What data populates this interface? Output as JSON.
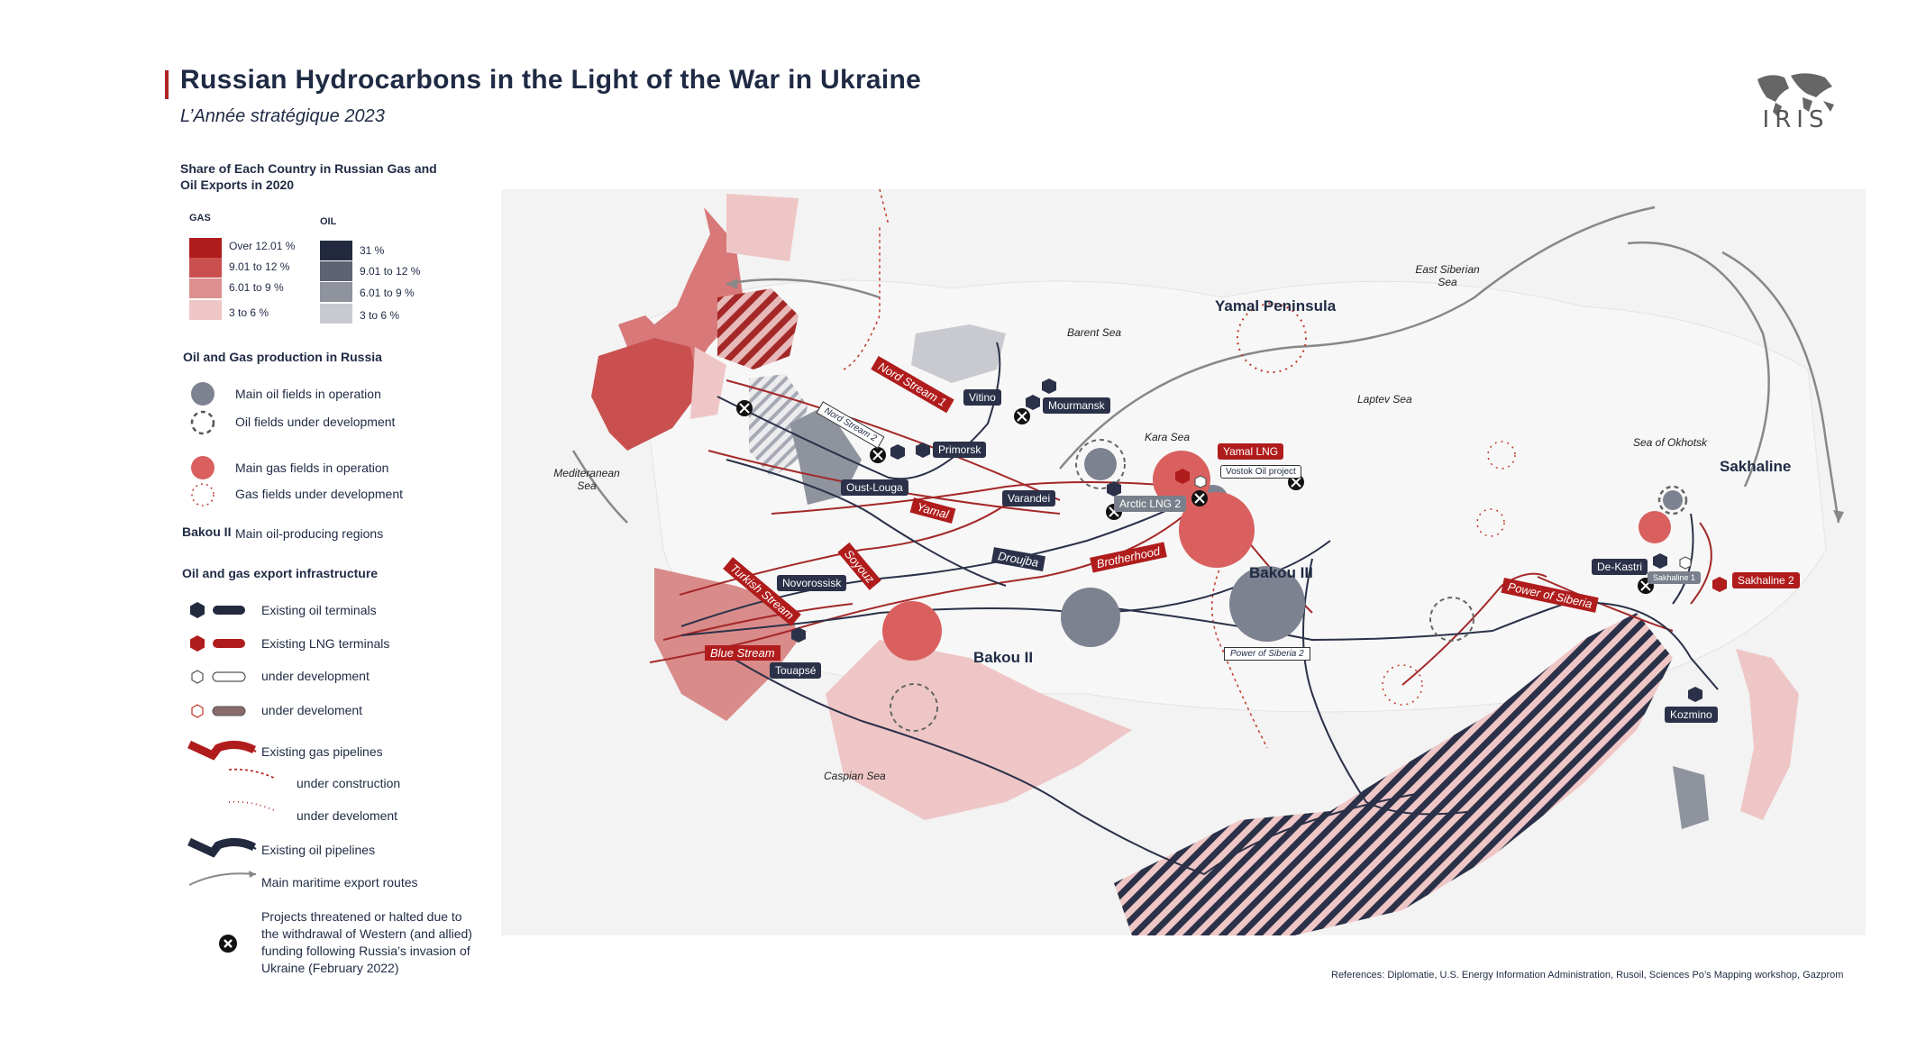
{
  "header": {
    "title": "Russian Hydrocarbons in the Light of the War in Ukraine",
    "subtitle": "L’Année stratégique 2023",
    "logo_text": "IRIS"
  },
  "legend": {
    "share_heading": "Share of Each Country in Russian Gas and Oil Exports in 2020",
    "gas_heading": "GAS",
    "oil_heading": "OIL",
    "gas_levels": [
      {
        "label": "Over 12.01 %",
        "color": "#b01c1c"
      },
      {
        "label": "9.01 to 12 %",
        "color": "#c9504f"
      },
      {
        "label": "6.01 to 9 %",
        "color": "#dc8f8e"
      },
      {
        "label": "3 to 6 %",
        "color": "#efc6c6"
      }
    ],
    "oil_levels": [
      {
        "label": "31 %",
        "color": "#232a40"
      },
      {
        "label": "9.01 to 12 %",
        "color": "#5d6373"
      },
      {
        "label": "6.01 to 9 %",
        "color": "#8e939e"
      },
      {
        "label": "3 to 6 %",
        "color": "#c8cad0"
      }
    ],
    "production_heading": "Oil and Gas production in Russia",
    "main_oil": "Main oil fields in operation",
    "oil_dev": "Oil fields under development",
    "main_gas": "Main gas fields in operation",
    "gas_dev": "Gas fields under development",
    "bakou_key": "Bakou II",
    "bakou_desc": "Main oil-producing regions",
    "infra_heading": "Oil and gas export infrastructure",
    "oil_terminals": "Existing oil terminals",
    "lng_terminals": "Existing LNG terminals",
    "under_dev_1": "under development",
    "under_dev_2": "under develoment",
    "gas_pipelines": "Existing gas pipelines",
    "under_construction": "under construction",
    "under_dev_3": "under develoment",
    "oil_pipelines": "Existing oil pipelines",
    "maritime": "Main maritime export routes",
    "threatened": "Projects threatened or halted due to the withdrawal of Western (and allied) funding following Russia’s invasion of Ukraine (February 2022)"
  },
  "map": {
    "seas": {
      "barent": "Barent Sea",
      "kara": "Kara Sea",
      "laptev": "Laptev Sea",
      "east_siberian": "East Siberian Sea",
      "okhotsk": "Sea of Okhotsk",
      "mediterranean": "Mediteranean Sea",
      "caspian": "Caspian Sea"
    },
    "regions": {
      "yamal_peninsula": "Yamal Peninsula",
      "sakhaline": "Sakhaline",
      "bakou2": "Bakou II",
      "bakou3": "Bakou III"
    },
    "terminals": {
      "vitino": "Vitino",
      "mourmansk": "Mourmansk",
      "primorsk": "Primorsk",
      "oust_louga": "Oust-Louga",
      "varandei": "Varandei",
      "novorossisk": "Novorossisk",
      "touapse": "Touapsé",
      "de_kastri": "De-Kastri",
      "kozmino": "Kozmino",
      "yamal_lng": "Yamal LNG",
      "arctic_lng2": "Arctic LNG 2",
      "sakhalin2": "Sakhaline 2",
      "sakhalin1": "Sakhaline 1",
      "vostok": "Vostok Oil project"
    },
    "pipelines": {
      "nord_stream1": "Nord Stream 1",
      "nord_stream2": "Nord Stream 2",
      "yamal": "Yamal",
      "soyouz": "Soyouz",
      "brotherhood": "Brotherhood",
      "droujba": "Droujba",
      "turkish_stream": "Turkish Stream",
      "blue_stream": "Blue Stream",
      "power_of_siberia": "Power of Siberia",
      "power_of_siberia2": "Power of Siberia 2"
    },
    "colors": {
      "gas_main": "#b01c1c",
      "oil_main": "#232a40",
      "oil_field": "#7d8290",
      "gas_field": "#d9605f",
      "land": "#f3f3f3",
      "map_bg": "#f3f3f3"
    }
  },
  "references": "References: Diplomatie, U.S. Energy Information Administration, Rusoil, Sciences Po’s Mapping workshop, Gazprom"
}
